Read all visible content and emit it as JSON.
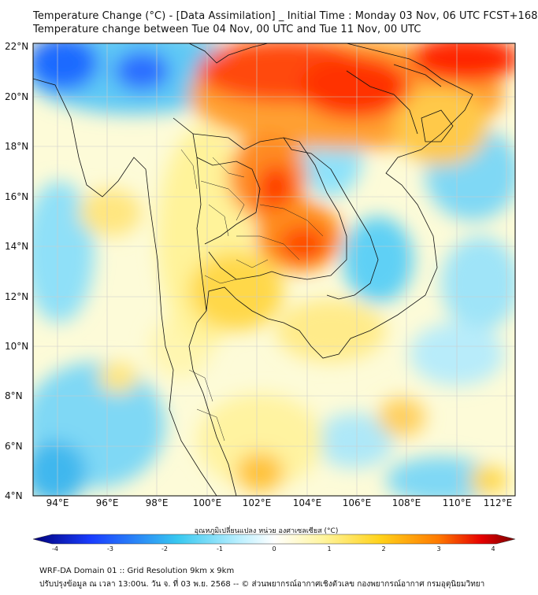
{
  "title": {
    "line1": "Temperature Change (°C) - [Data Assimilation] _ Initial Time : Monday 03 Nov, 06 UTC FCST+168",
    "line2": "Temperature change between Tue 04 Nov, 00 UTC and Tue 11 Nov, 00 UTC"
  },
  "axes": {
    "lat_labels": [
      "22°N",
      "20°N",
      "18°N",
      "16°N",
      "14°N",
      "12°N",
      "10°N",
      "8°N",
      "6°N",
      "4°N"
    ],
    "lon_labels": [
      "94°E",
      "96°E",
      "98°E",
      "100°E",
      "102°E",
      "104°E",
      "106°E",
      "108°E",
      "110°E",
      "112°E"
    ]
  },
  "colorbar": {
    "title": "อุณหภูมิเปลี่ยนแปลง หน่วย องศาเซลเซียส (°C)",
    "ticks": [
      "-4",
      "-3",
      "-2",
      "-1",
      "0",
      "1",
      "2",
      "3",
      "4"
    ],
    "colors": {
      "min": "#00007a",
      "low": "#1a3dff",
      "mid_low": "#38c8f0",
      "zero": "#ffffff",
      "mid_high": "#ffe066",
      "high": "#ff7a00",
      "max": "#7a0000"
    }
  },
  "footer": {
    "line1": "WRF-DA Domain 01 :: Grid Resolution 9km x 9km",
    "line2": "ปรับปรุงข้อมูล ณ เวลา 13:00น. วัน จ. ที่ 03 พ.ย. 2568 -- © ส่วนพยากรณ์อากาศเชิงตัวเลข กองพยากรณ์อากาศ กรมอุตุนิยมวิทยา"
  }
}
